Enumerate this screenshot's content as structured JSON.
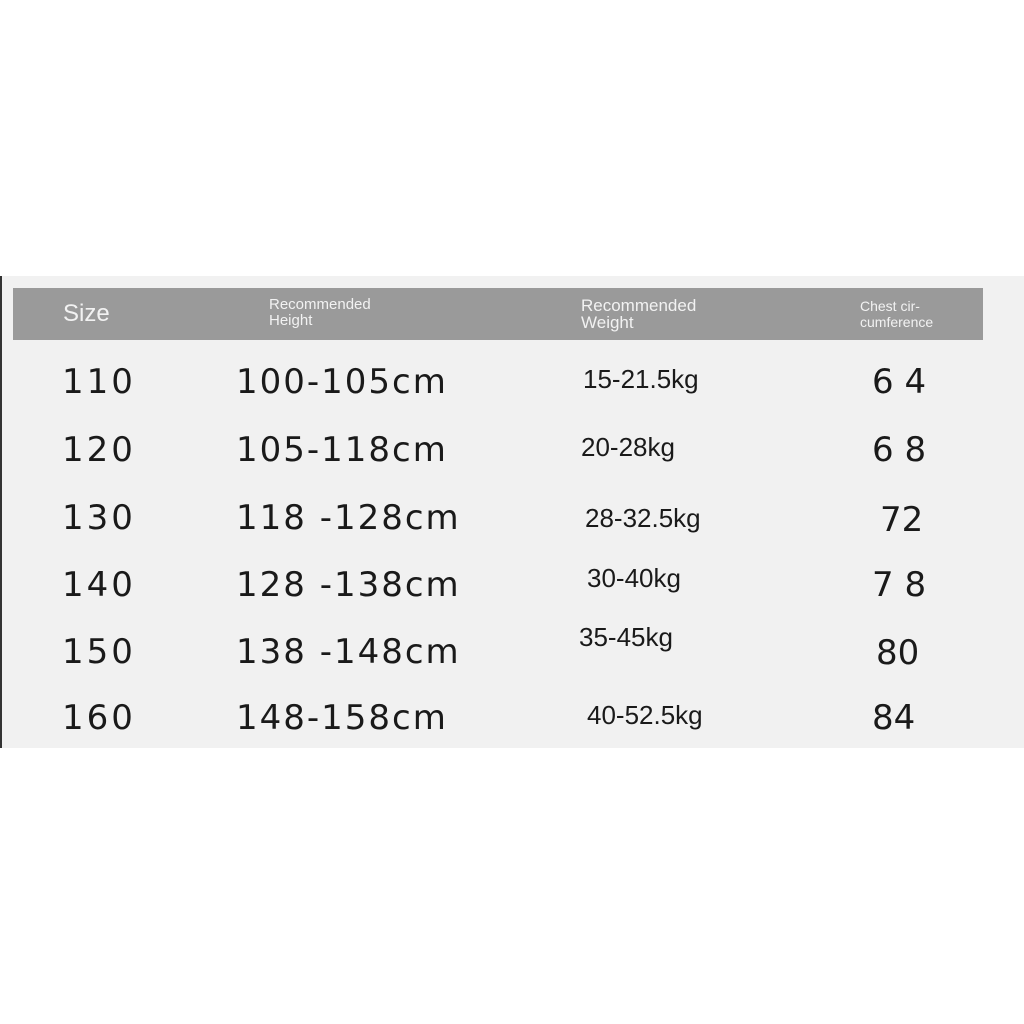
{
  "header": {
    "size": "Size",
    "height_1": "Recommended",
    "height_2": "Height",
    "weight_1": "Recommended",
    "weight_2": "Weight",
    "chest_1": "Chest cir-",
    "chest_2": "cumference"
  },
  "rows": [
    {
      "size": "110",
      "height": "100-105cm",
      "weight": "15-21.5kg",
      "chest": "6 4"
    },
    {
      "size": "120",
      "height": "105-118cm",
      "weight": "20-28kg",
      "chest": "6 8"
    },
    {
      "size": "130",
      "height": "118 -128cm",
      "weight": "28-32.5kg",
      "chest": "72"
    },
    {
      "size": "140",
      "height": "128 -138cm",
      "weight": "30-40kg",
      "chest": "7 8"
    },
    {
      "size": "150",
      "height": "138 -148cm",
      "weight": "35-45kg",
      "chest": "80"
    },
    {
      "size": "160",
      "height": "148-158cm",
      "weight": "40-52.5kg",
      "chest": "84"
    }
  ],
  "colors": {
    "header_bg": "#9a9a9a",
    "panel_bg": "#f1f1f1",
    "text": "#1a1a1a"
  }
}
